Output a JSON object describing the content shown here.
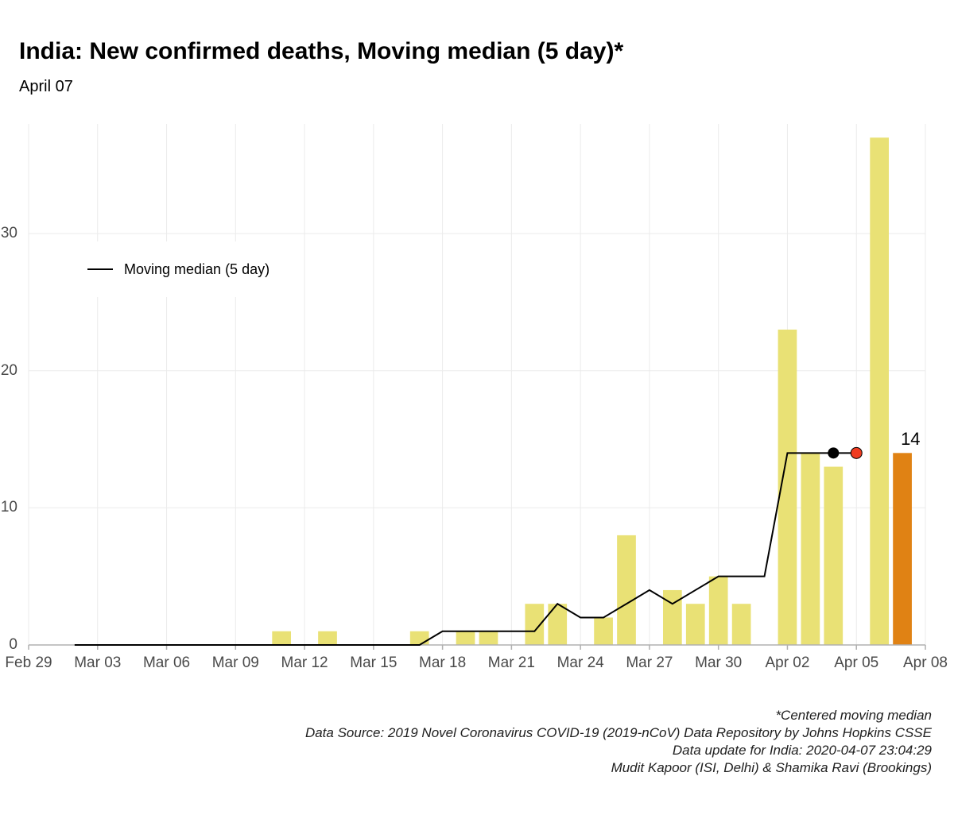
{
  "title": "India: New confirmed deaths, Moving median (5 day)*",
  "subtitle": "April 07",
  "legend": {
    "label": "Moving median (5 day)"
  },
  "footer": {
    "note": "*Centered moving median",
    "source": "Data Source: 2019 Novel Coronavirus COVID-19 (2019-nCoV) Data Repository by Johns Hopkins CSSE",
    "update": "Data update for India: 2020-04-07 23:04:29",
    "credit": "Mudit Kapoor (ISI, Delhi) & Shamika Ravi (Brookings)"
  },
  "chart": {
    "type": "bar+line",
    "background_color": "#ffffff",
    "panel_color": "#ffffff",
    "grid_color": "#ebebeb",
    "axis_line_color": "#b0b0b0",
    "bar_color": "#e9e175",
    "bar_highlight_color": "#e08214",
    "line_color": "#000000",
    "line_width": 2,
    "marker_black": "#000000",
    "marker_red": "#f03b20",
    "marker_radius": 7,
    "bar_width_ratio": 0.82,
    "title_fontsize": 30,
    "subtitle_fontsize": 20,
    "tick_fontsize": 19,
    "footer_fontsize": 17,
    "endlabel_fontsize": 22,
    "x_domain": [
      "2020-02-29",
      "2020-04-08"
    ],
    "ylim": [
      0,
      38
    ],
    "y_ticks": [
      0,
      10,
      20,
      30
    ],
    "x_ticks": [
      {
        "idx": 0,
        "label": "Feb 29"
      },
      {
        "idx": 3,
        "label": "Mar 03"
      },
      {
        "idx": 6,
        "label": "Mar 06"
      },
      {
        "idx": 9,
        "label": "Mar 09"
      },
      {
        "idx": 12,
        "label": "Mar 12"
      },
      {
        "idx": 15,
        "label": "Mar 15"
      },
      {
        "idx": 18,
        "label": "Mar 18"
      },
      {
        "idx": 21,
        "label": "Mar 21"
      },
      {
        "idx": 24,
        "label": "Mar 24"
      },
      {
        "idx": 27,
        "label": "Mar 27"
      },
      {
        "idx": 30,
        "label": "Mar 30"
      },
      {
        "idx": 33,
        "label": "Apr 02"
      },
      {
        "idx": 36,
        "label": "Apr 05"
      },
      {
        "idx": 39,
        "label": "Apr 08"
      }
    ],
    "bars": [
      {
        "idx": 11,
        "value": 1
      },
      {
        "idx": 13,
        "value": 1
      },
      {
        "idx": 17,
        "value": 1
      },
      {
        "idx": 19,
        "value": 1
      },
      {
        "idx": 20,
        "value": 1
      },
      {
        "idx": 22,
        "value": 3
      },
      {
        "idx": 23,
        "value": 3
      },
      {
        "idx": 25,
        "value": 2
      },
      {
        "idx": 26,
        "value": 8
      },
      {
        "idx": 28,
        "value": 4
      },
      {
        "idx": 29,
        "value": 3
      },
      {
        "idx": 30,
        "value": 5
      },
      {
        "idx": 31,
        "value": 3
      },
      {
        "idx": 33,
        "value": 23
      },
      {
        "idx": 34,
        "value": 14
      },
      {
        "idx": 35,
        "value": 13
      },
      {
        "idx": 37,
        "value": 37
      },
      {
        "idx": 38,
        "value": 14,
        "highlight": true
      }
    ],
    "median_line": [
      {
        "idx": 2,
        "value": 0
      },
      {
        "idx": 11,
        "value": 0
      },
      {
        "idx": 17,
        "value": 0
      },
      {
        "idx": 18,
        "value": 1
      },
      {
        "idx": 21,
        "value": 1
      },
      {
        "idx": 22,
        "value": 1
      },
      {
        "idx": 23,
        "value": 3
      },
      {
        "idx": 24,
        "value": 2
      },
      {
        "idx": 25,
        "value": 2
      },
      {
        "idx": 26,
        "value": 3
      },
      {
        "idx": 27,
        "value": 4
      },
      {
        "idx": 28,
        "value": 3
      },
      {
        "idx": 29,
        "value": 4
      },
      {
        "idx": 30,
        "value": 5
      },
      {
        "idx": 31,
        "value": 5
      },
      {
        "idx": 32,
        "value": 5
      },
      {
        "idx": 33,
        "value": 14
      },
      {
        "idx": 35,
        "value": 14
      }
    ],
    "median_extension": [
      {
        "idx": 35,
        "value": 14
      },
      {
        "idx": 36,
        "value": 14
      }
    ],
    "marker_black_point": {
      "idx": 35,
      "value": 14
    },
    "marker_red_point": {
      "idx": 36,
      "value": 14
    },
    "end_label": {
      "idx": 38,
      "value": 14,
      "text": "14"
    }
  }
}
